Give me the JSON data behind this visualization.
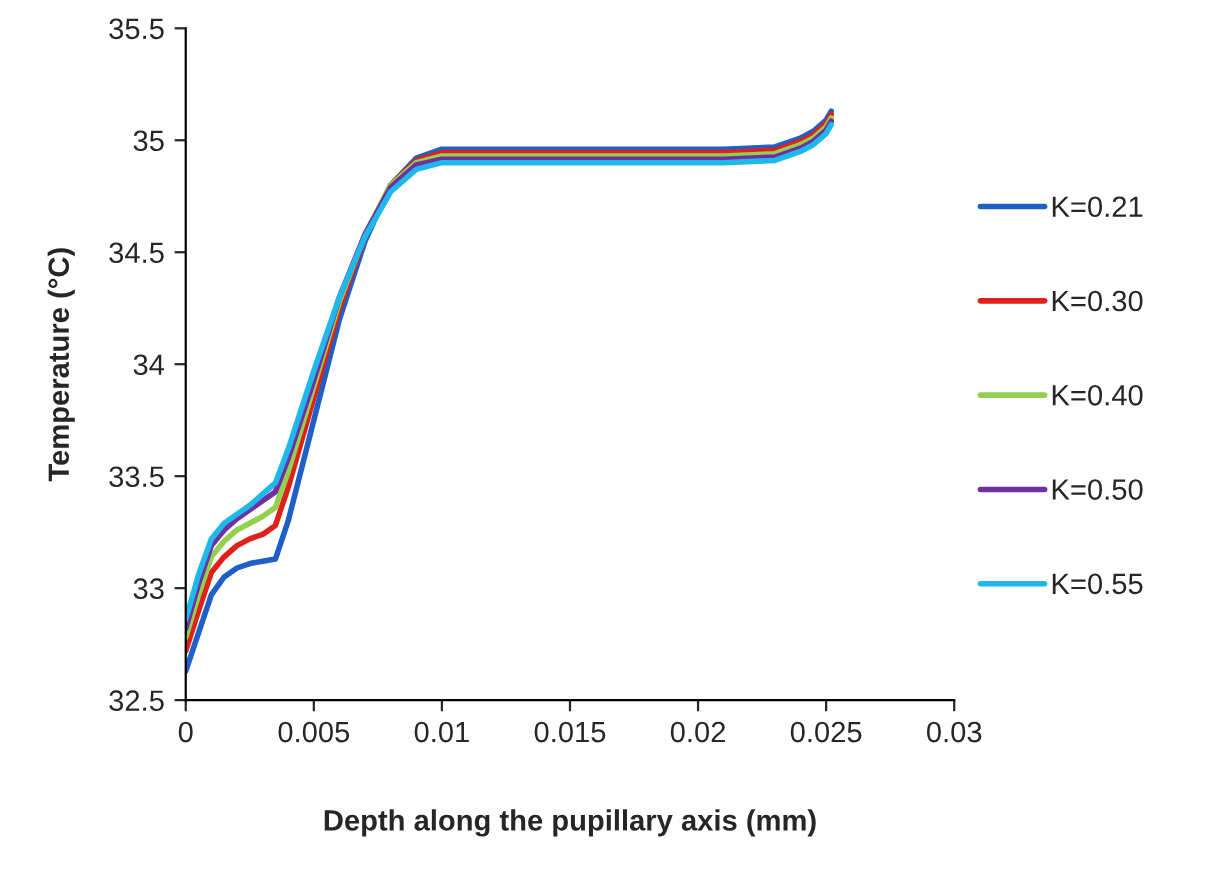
{
  "chart_data": {
    "type": "line",
    "xlabel": "Depth along the pupillary axis (mm)",
    "ylabel": "Temperature (°C)",
    "x": [
      0,
      0.0005,
      0.001,
      0.0015,
      0.002,
      0.0025,
      0.003,
      0.0035,
      0.004,
      0.005,
      0.006,
      0.007,
      0.008,
      0.009,
      0.01,
      0.012,
      0.015,
      0.018,
      0.021,
      0.023,
      0.024,
      0.0245,
      0.025,
      0.0252
    ],
    "series": [
      {
        "name": "K=0.21",
        "color": "#1f5fc8",
        "values": [
          32.63,
          32.8,
          32.97,
          33.05,
          33.09,
          33.11,
          33.12,
          33.13,
          33.3,
          33.75,
          34.2,
          34.55,
          34.8,
          34.92,
          34.96,
          34.96,
          34.96,
          34.96,
          34.96,
          34.97,
          35.01,
          35.04,
          35.09,
          35.13
        ]
      },
      {
        "name": "K=0.30",
        "color": "#e0201b",
        "values": [
          32.72,
          32.9,
          33.07,
          33.14,
          33.19,
          33.22,
          33.24,
          33.28,
          33.45,
          33.85,
          34.25,
          34.57,
          34.8,
          34.91,
          34.945,
          34.945,
          34.945,
          34.945,
          34.945,
          34.955,
          34.995,
          35.025,
          35.075,
          35.115
        ]
      },
      {
        "name": "K=0.40",
        "color": "#92d050",
        "values": [
          32.78,
          32.97,
          33.14,
          33.21,
          33.26,
          33.29,
          33.32,
          33.36,
          33.52,
          33.9,
          34.28,
          34.58,
          34.8,
          34.9,
          34.93,
          34.93,
          34.93,
          34.93,
          34.93,
          34.94,
          34.98,
          35.01,
          35.06,
          35.1
        ]
      },
      {
        "name": "K=0.50",
        "color": "#7030a0",
        "values": [
          32.82,
          33.02,
          33.19,
          33.26,
          33.31,
          33.35,
          33.39,
          33.43,
          33.58,
          33.93,
          34.3,
          34.58,
          34.79,
          34.89,
          34.915,
          34.915,
          34.915,
          34.915,
          34.915,
          34.925,
          34.965,
          34.995,
          35.045,
          35.085
        ]
      },
      {
        "name": "K=0.55",
        "color": "#1fb8ec",
        "values": [
          32.86,
          33.06,
          33.22,
          33.29,
          33.33,
          33.37,
          33.42,
          33.47,
          33.62,
          33.97,
          34.3,
          34.57,
          34.77,
          34.87,
          34.9,
          34.9,
          34.9,
          34.9,
          34.9,
          34.91,
          34.95,
          34.98,
          35.03,
          35.07
        ]
      }
    ],
    "xlim": [
      0,
      0.03
    ],
    "xticks": [
      0,
      0.005,
      0.01,
      0.015,
      0.02,
      0.025,
      0.03
    ],
    "ylim": [
      32.5,
      35.5
    ],
    "yticks": [
      32.5,
      33,
      33.5,
      34,
      34.5,
      35,
      35.5
    ],
    "grid": false,
    "legend": "right",
    "marker": "none",
    "line_style": "solid"
  }
}
